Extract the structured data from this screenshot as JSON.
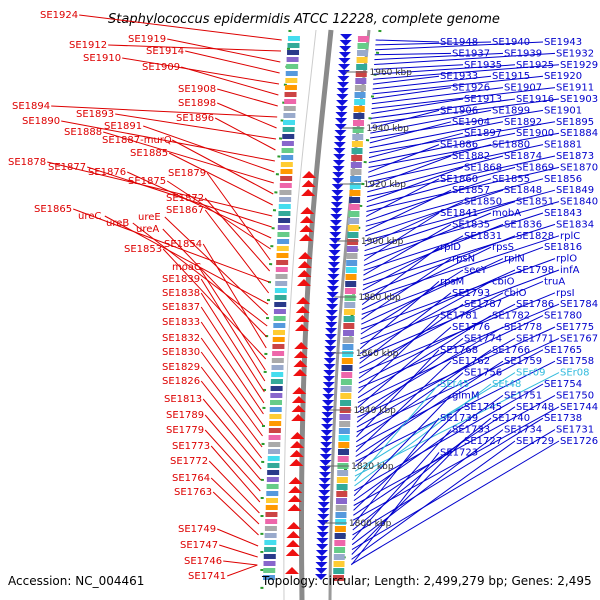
{
  "title": "Staphylococcus epidermidis ATCC 12228, complete genome",
  "footer": {
    "accession": "Accession: NC_004461",
    "summary": "Topology: circular; Length: 2,499,279 bp; Genes: 2,495"
  },
  "kbp_markers": [
    "1960 kbp",
    "1940 kbp",
    "1920 kbp",
    "1900 kbp",
    "1880 kbp",
    "1860 kbp",
    "1840 kbp",
    "1820 kbp",
    "1800 kbp"
  ],
  "left_labels": [
    "SE1924",
    "SE1912",
    "SE1919",
    "SE1914",
    "SE1910",
    "SE1909",
    "SE1908",
    "SE1894",
    "SE1898",
    "SE1893",
    "SE1896",
    "SE1890",
    "SE1891",
    "SE1888",
    "SE1887-murQ",
    "SE1885",
    "SE1878",
    "SE1877",
    "SE1876",
    "SE1875",
    "SE1879",
    "SE1872",
    "SE1865",
    "SE1867",
    "ureC",
    "ureE",
    "ureB",
    "ureA",
    "SE1854",
    "SE1853",
    "moaC",
    "SE1839",
    "SE1838",
    "SE1837",
    "SE1833",
    "SE1832",
    "SE1830",
    "SE1829",
    "SE1826",
    "SE1813",
    "SE1789",
    "SE1779",
    "SE1773",
    "SE1772",
    "SE1764",
    "SE1763",
    "SE1749",
    "SE1747",
    "SE1746",
    "SE1741"
  ],
  "right_labels": [
    "SE1948",
    "SE1940",
    "SE1943",
    "SE1937",
    "SE1939",
    "SE1932",
    "SE1935",
    "SE1925",
    "SE1929",
    "SE1933",
    "SE1915",
    "SE1920",
    "SE1926",
    "SE1907",
    "SE1911",
    "SE1913",
    "SE1916",
    "SE1903",
    "SE1906",
    "SE1899",
    "SE1901",
    "SE1904",
    "SE1892",
    "SE1895",
    "SE1897",
    "SE1900",
    "SE1884",
    "SE1886",
    "SE1880",
    "SE1881",
    "SE1882",
    "SE1874",
    "SE1873",
    "SE1868",
    "SE1869",
    "SE1870",
    "SE1860",
    "SE1855",
    "SE1856",
    "SE1857",
    "SE1848",
    "SE1849",
    "SE1850",
    "SE1851",
    "SE1840",
    "SE1841",
    "mobA",
    "SE1843",
    "SE1835",
    "SE1836",
    "SE1834",
    "SE1831",
    "SE1828",
    "rplC",
    "rplD",
    "rpsS",
    "SE1816",
    "rpsN",
    "rplN",
    "rplO",
    "secY",
    "SE1798",
    "infA",
    "rpsM",
    "cbiO",
    "truA",
    "SE1793",
    "cbiO",
    "rpsI",
    "SE1787",
    "SE1786",
    "SE1784",
    "SE1781",
    "SE1782",
    "SE1780",
    "SE1776",
    "SE1778",
    "SE1775",
    "SE1774",
    "SE1771",
    "SE1767",
    "SE1768",
    "SE1766",
    "SE1765",
    "SE1762",
    "SE1759",
    "SE1758",
    "SE1756",
    "SEr09",
    "SEr08",
    "SEt45",
    "SEt48",
    "SE1754",
    "glmM",
    "SE1751",
    "SE1750",
    "SE1745",
    "SE1748",
    "SE1744",
    "SE1739",
    "SE1740",
    "SE1738",
    "SE1733",
    "SE1734",
    "SE1731",
    "SE1727",
    "SE1729",
    "SE1726",
    "SE1723"
  ],
  "colors": {
    "left_label": "#dd0000",
    "right_label": "#0000cc",
    "rna_label": "#33bbdd",
    "backbone": "#888888",
    "tick": "#229922"
  },
  "icons": [
    "forward-strand-arrow",
    "reverse-strand-arrow",
    "cog-color-block"
  ]
}
